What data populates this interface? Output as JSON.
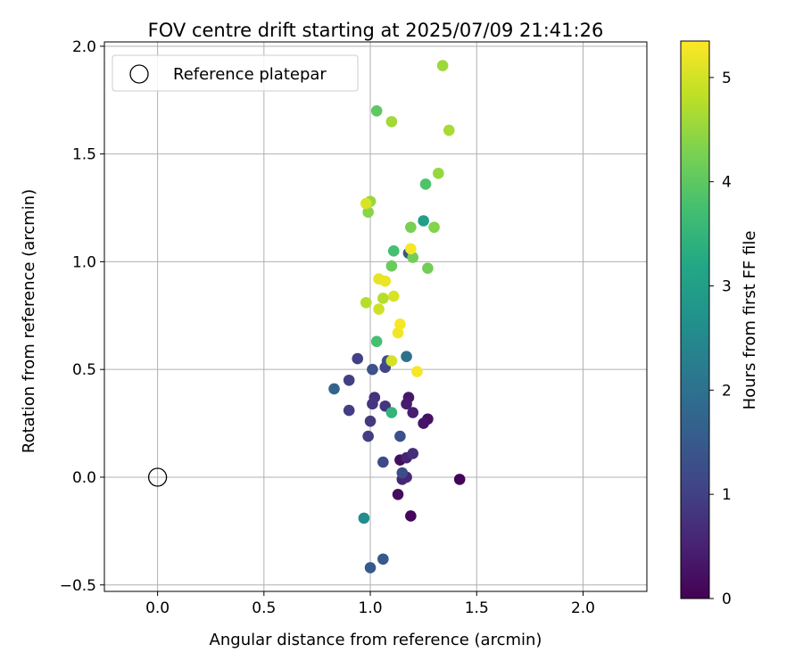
{
  "chart_data": {
    "type": "scatter",
    "title": "FOV centre drift starting at 2025/07/09 21:41:26",
    "xlabel": "Angular distance from reference (arcmin)",
    "ylabel": "Rotation from reference (arcmin)",
    "xlim": [
      -0.25,
      2.3
    ],
    "ylim": [
      -0.53,
      2.02
    ],
    "xticks": [
      0.0,
      0.5,
      1.0,
      1.5,
      2.0
    ],
    "xtick_labels": [
      "0.0",
      "0.5",
      "1.0",
      "1.5",
      "2.0"
    ],
    "yticks": [
      -0.5,
      0.0,
      0.5,
      1.0,
      1.5,
      2.0
    ],
    "ytick_labels": [
      "−0.5",
      "0.0",
      "0.5",
      "1.0",
      "1.5",
      "2.0"
    ],
    "grid": true,
    "legend": {
      "position": "top-left",
      "entries": [
        "Reference platepar"
      ]
    },
    "reference_point": {
      "x": 0.0,
      "y": 0.0
    },
    "colorbar": {
      "label": "Hours from first FF file",
      "colormap": "viridis",
      "range": [
        0,
        5.35
      ],
      "ticks": [
        0,
        1,
        2,
        3,
        4,
        5
      ],
      "tick_labels": [
        "0",
        "1",
        "2",
        "3",
        "4",
        "5"
      ]
    },
    "points": [
      {
        "x": 1.42,
        "y": -0.01,
        "hours": 0.05
      },
      {
        "x": 1.19,
        "y": -0.18,
        "hours": 0.1
      },
      {
        "x": 1.13,
        "y": -0.08,
        "hours": 0.15
      },
      {
        "x": 1.14,
        "y": 0.08,
        "hours": 0.2
      },
      {
        "x": 1.27,
        "y": 0.27,
        "hours": 0.25
      },
      {
        "x": 1.25,
        "y": 0.25,
        "hours": 0.3
      },
      {
        "x": 1.18,
        "y": 0.37,
        "hours": 0.35
      },
      {
        "x": 1.17,
        "y": 0.34,
        "hours": 0.4
      },
      {
        "x": 1.2,
        "y": 0.3,
        "hours": 0.45
      },
      {
        "x": 1.17,
        "y": 0.09,
        "hours": 0.5
      },
      {
        "x": 1.15,
        "y": -0.01,
        "hours": 0.55
      },
      {
        "x": 1.17,
        "y": 0.0,
        "hours": 0.6
      },
      {
        "x": 1.2,
        "y": 0.11,
        "hours": 0.7
      },
      {
        "x": 1.02,
        "y": 0.37,
        "hours": 0.75
      },
      {
        "x": 1.01,
        "y": 0.34,
        "hours": 0.8
      },
      {
        "x": 1.07,
        "y": 0.33,
        "hours": 0.85
      },
      {
        "x": 1.0,
        "y": 0.26,
        "hours": 0.9
      },
      {
        "x": 0.99,
        "y": 0.19,
        "hours": 0.95
      },
      {
        "x": 0.9,
        "y": 0.31,
        "hours": 0.95
      },
      {
        "x": 0.9,
        "y": 0.45,
        "hours": 1.0
      },
      {
        "x": 0.94,
        "y": 0.55,
        "hours": 1.0
      },
      {
        "x": 1.07,
        "y": 0.51,
        "hours": 1.1
      },
      {
        "x": 1.06,
        "y": 0.07,
        "hours": 1.2
      },
      {
        "x": 1.15,
        "y": 0.02,
        "hours": 1.25
      },
      {
        "x": 1.14,
        "y": 0.19,
        "hours": 1.3
      },
      {
        "x": 1.08,
        "y": 0.54,
        "hours": 1.3
      },
      {
        "x": 1.01,
        "y": 0.5,
        "hours": 1.35
      },
      {
        "x": 1.18,
        "y": 1.04,
        "hours": 1.45
      },
      {
        "x": 1.0,
        "y": -0.42,
        "hours": 1.5
      },
      {
        "x": 1.06,
        "y": -0.38,
        "hours": 1.5
      },
      {
        "x": 0.83,
        "y": 0.41,
        "hours": 1.7
      },
      {
        "x": 1.17,
        "y": 0.56,
        "hours": 2.0
      },
      {
        "x": 0.97,
        "y": -0.19,
        "hours": 2.6
      },
      {
        "x": 1.25,
        "y": 1.19,
        "hours": 3.0
      },
      {
        "x": 1.1,
        "y": 0.3,
        "hours": 3.5
      },
      {
        "x": 1.03,
        "y": 0.63,
        "hours": 3.75
      },
      {
        "x": 1.11,
        "y": 1.05,
        "hours": 3.75
      },
      {
        "x": 1.26,
        "y": 1.36,
        "hours": 3.85
      },
      {
        "x": 1.03,
        "y": 1.7,
        "hours": 4.0
      },
      {
        "x": 1.1,
        "y": 0.98,
        "hours": 4.1
      },
      {
        "x": 1.27,
        "y": 0.97,
        "hours": 4.2
      },
      {
        "x": 1.2,
        "y": 1.02,
        "hours": 4.2
      },
      {
        "x": 1.19,
        "y": 1.16,
        "hours": 4.25
      },
      {
        "x": 1.3,
        "y": 1.16,
        "hours": 4.35
      },
      {
        "x": 0.99,
        "y": 1.23,
        "hours": 4.4
      },
      {
        "x": 1.0,
        "y": 1.28,
        "hours": 4.5
      },
      {
        "x": 1.32,
        "y": 1.41,
        "hours": 4.5
      },
      {
        "x": 1.34,
        "y": 1.91,
        "hours": 4.55
      },
      {
        "x": 1.1,
        "y": 1.65,
        "hours": 4.6
      },
      {
        "x": 1.37,
        "y": 1.61,
        "hours": 4.65
      },
      {
        "x": 0.98,
        "y": 0.81,
        "hours": 4.75
      },
      {
        "x": 1.06,
        "y": 0.83,
        "hours": 4.75
      },
      {
        "x": 1.04,
        "y": 0.78,
        "hours": 4.95
      },
      {
        "x": 1.1,
        "y": 0.54,
        "hours": 5.0
      },
      {
        "x": 1.11,
        "y": 0.84,
        "hours": 5.05
      },
      {
        "x": 0.98,
        "y": 1.27,
        "hours": 5.05
      },
      {
        "x": 1.04,
        "y": 0.92,
        "hours": 5.15
      },
      {
        "x": 1.07,
        "y": 0.91,
        "hours": 5.2
      },
      {
        "x": 1.13,
        "y": 0.67,
        "hours": 5.25
      },
      {
        "x": 1.14,
        "y": 0.71,
        "hours": 5.3
      },
      {
        "x": 1.22,
        "y": 0.49,
        "hours": 5.3
      },
      {
        "x": 1.19,
        "y": 1.06,
        "hours": 5.3
      }
    ]
  }
}
